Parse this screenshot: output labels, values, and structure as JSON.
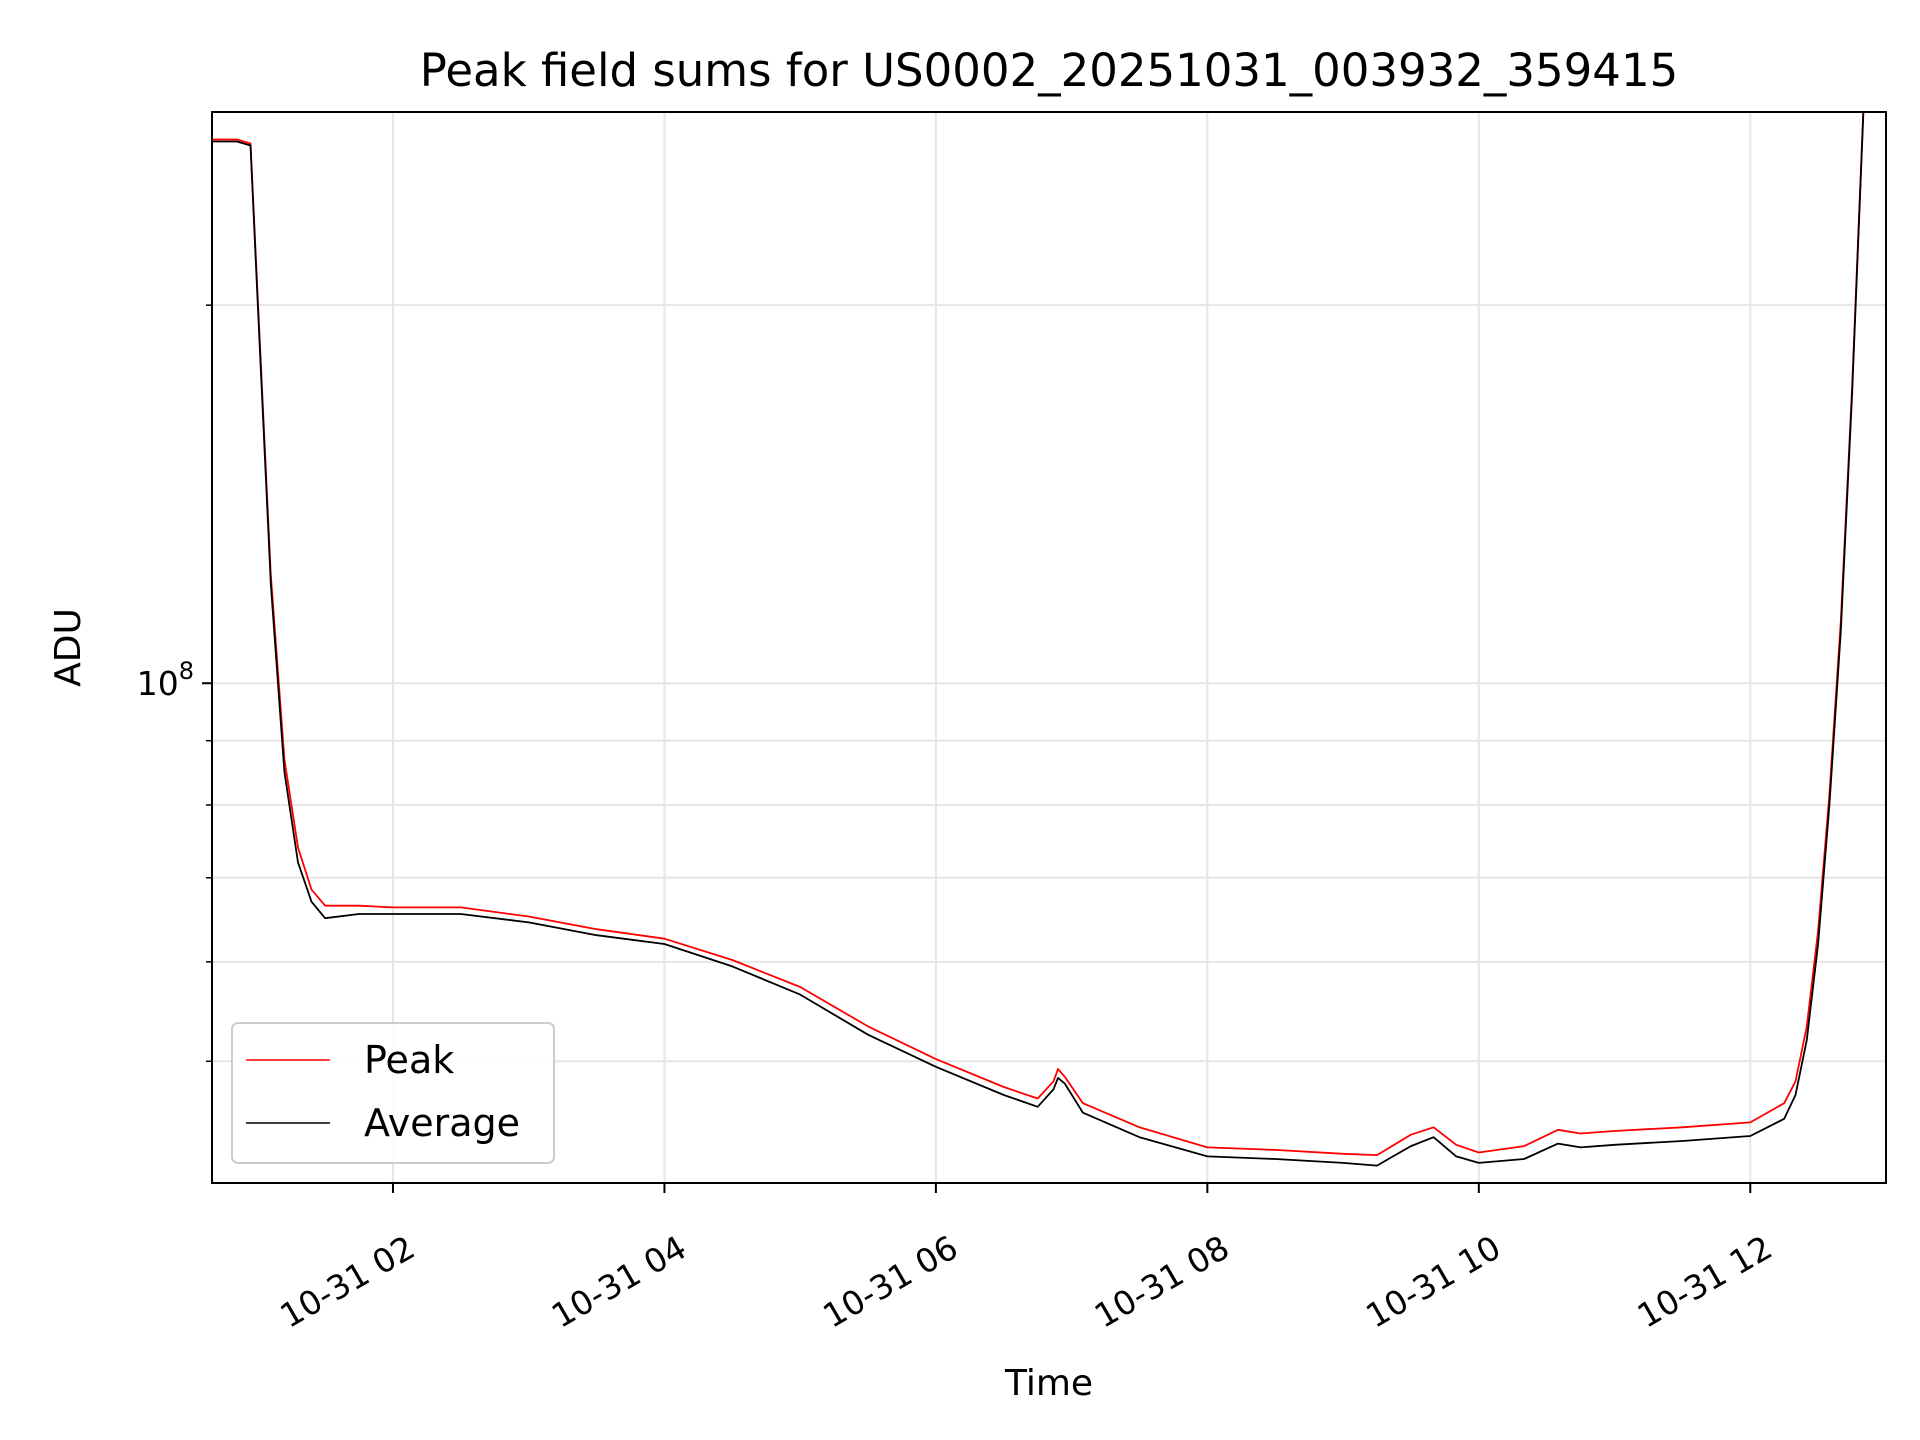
{
  "chart_data": {
    "type": "line",
    "title": "Peak field sums for US0002_20251031_003932_359415",
    "xlabel": "Time",
    "ylabel": "ADU",
    "x_axis_type": "time",
    "xlim": [
      "2025-10-31 00:40",
      "2025-10-31 13:00"
    ],
    "x_ticks": [
      "2025-10-31 02:00",
      "2025-10-31 04:00",
      "2025-10-31 06:00",
      "2025-10-31 08:00",
      "2025-10-31 10:00",
      "2025-10-31 12:00"
    ],
    "x_tick_labels": [
      "10-31 02",
      "10-31 04",
      "10-31 06",
      "10-31 08",
      "10-31 10",
      "10-31 12"
    ],
    "y_scale": "log",
    "ylim": [
      40000000,
      285000000
    ],
    "y_major_ticks": [
      100000000
    ],
    "y_major_tick_labels": [
      {
        "base": "10",
        "exp": "8"
      }
    ],
    "y_minor_ticks": [
      50000000,
      60000000,
      70000000,
      80000000,
      90000000,
      200000000
    ],
    "grid": true,
    "legend_position": "lower-left",
    "colors": {
      "Peak": "#ff0000",
      "Average": "#000000"
    },
    "series": [
      {
        "name": "Average",
        "x": [
          "2025-10-31 00:40",
          "2025-10-31 00:51",
          "2025-10-31 00:57",
          "2025-10-31 01:00",
          "2025-10-31 01:06",
          "2025-10-31 01:12",
          "2025-10-31 01:18",
          "2025-10-31 01:24",
          "2025-10-31 01:30",
          "2025-10-31 01:45",
          "2025-10-31 02:00",
          "2025-10-31 02:30",
          "2025-10-31 03:00",
          "2025-10-31 03:30",
          "2025-10-31 04:00",
          "2025-10-31 04:30",
          "2025-10-31 05:00",
          "2025-10-31 05:30",
          "2025-10-31 06:00",
          "2025-10-31 06:30",
          "2025-10-31 06:45",
          "2025-10-31 06:52",
          "2025-10-31 06:54",
          "2025-10-31 06:57",
          "2025-10-31 07:05",
          "2025-10-31 07:30",
          "2025-10-31 08:00",
          "2025-10-31 08:30",
          "2025-10-31 09:00",
          "2025-10-31 09:15",
          "2025-10-31 09:30",
          "2025-10-31 09:40",
          "2025-10-31 09:50",
          "2025-10-31 10:00",
          "2025-10-31 10:20",
          "2025-10-31 10:35",
          "2025-10-31 10:45",
          "2025-10-31 11:00",
          "2025-10-31 11:30",
          "2025-10-31 12:00",
          "2025-10-31 12:15",
          "2025-10-31 12:20",
          "2025-10-31 12:25",
          "2025-10-31 12:30",
          "2025-10-31 12:35",
          "2025-10-31 12:40",
          "2025-10-31 12:45",
          "2025-10-31 12:50"
        ],
        "y": [
          270000000,
          270000000,
          268000000,
          205000000,
          120000000,
          85000000,
          72000000,
          67000000,
          65000000,
          65500000,
          65500000,
          65500000,
          64500000,
          63000000,
          62000000,
          59500000,
          56500000,
          52500000,
          49500000,
          47000000,
          46000000,
          47500000,
          48500000,
          48000000,
          45500000,
          43500000,
          42000000,
          41800000,
          41500000,
          41300000,
          42800000,
          43500000,
          42000000,
          41500000,
          41800000,
          43000000,
          42700000,
          42900000,
          43200000,
          43600000,
          45000000,
          47000000,
          52000000,
          62000000,
          80000000,
          110000000,
          170000000,
          285000000
        ]
      },
      {
        "name": "Peak",
        "x": [
          "2025-10-31 00:40",
          "2025-10-31 00:51",
          "2025-10-31 00:57",
          "2025-10-31 01:00",
          "2025-10-31 01:06",
          "2025-10-31 01:12",
          "2025-10-31 01:18",
          "2025-10-31 01:24",
          "2025-10-31 01:30",
          "2025-10-31 01:45",
          "2025-10-31 02:00",
          "2025-10-31 02:30",
          "2025-10-31 03:00",
          "2025-10-31 03:30",
          "2025-10-31 04:00",
          "2025-10-31 04:30",
          "2025-10-31 05:00",
          "2025-10-31 05:30",
          "2025-10-31 06:00",
          "2025-10-31 06:30",
          "2025-10-31 06:45",
          "2025-10-31 06:52",
          "2025-10-31 06:54",
          "2025-10-31 06:57",
          "2025-10-31 07:05",
          "2025-10-31 07:30",
          "2025-10-31 08:00",
          "2025-10-31 08:30",
          "2025-10-31 09:00",
          "2025-10-31 09:15",
          "2025-10-31 09:30",
          "2025-10-31 09:40",
          "2025-10-31 09:50",
          "2025-10-31 10:00",
          "2025-10-31 10:20",
          "2025-10-31 10:35",
          "2025-10-31 10:45",
          "2025-10-31 11:00",
          "2025-10-31 11:30",
          "2025-10-31 12:00",
          "2025-10-31 12:15",
          "2025-10-31 12:20",
          "2025-10-31 12:25",
          "2025-10-31 12:30",
          "2025-10-31 12:35",
          "2025-10-31 12:40",
          "2025-10-31 12:45",
          "2025-10-31 12:50"
        ],
        "y": [
          271000000,
          271000000,
          269000000,
          207000000,
          122000000,
          87000000,
          74000000,
          68500000,
          66500000,
          66500000,
          66300000,
          66300000,
          65200000,
          63700000,
          62600000,
          60200000,
          57300000,
          53300000,
          50200000,
          47700000,
          46700000,
          48200000,
          49300000,
          48600000,
          46300000,
          44300000,
          42700000,
          42500000,
          42200000,
          42100000,
          43700000,
          44300000,
          42900000,
          42300000,
          42800000,
          44100000,
          43800000,
          44000000,
          44300000,
          44700000,
          46300000,
          48200000,
          53300000,
          63500000,
          81500000,
          112000000,
          172000000,
          287000000
        ]
      }
    ]
  }
}
